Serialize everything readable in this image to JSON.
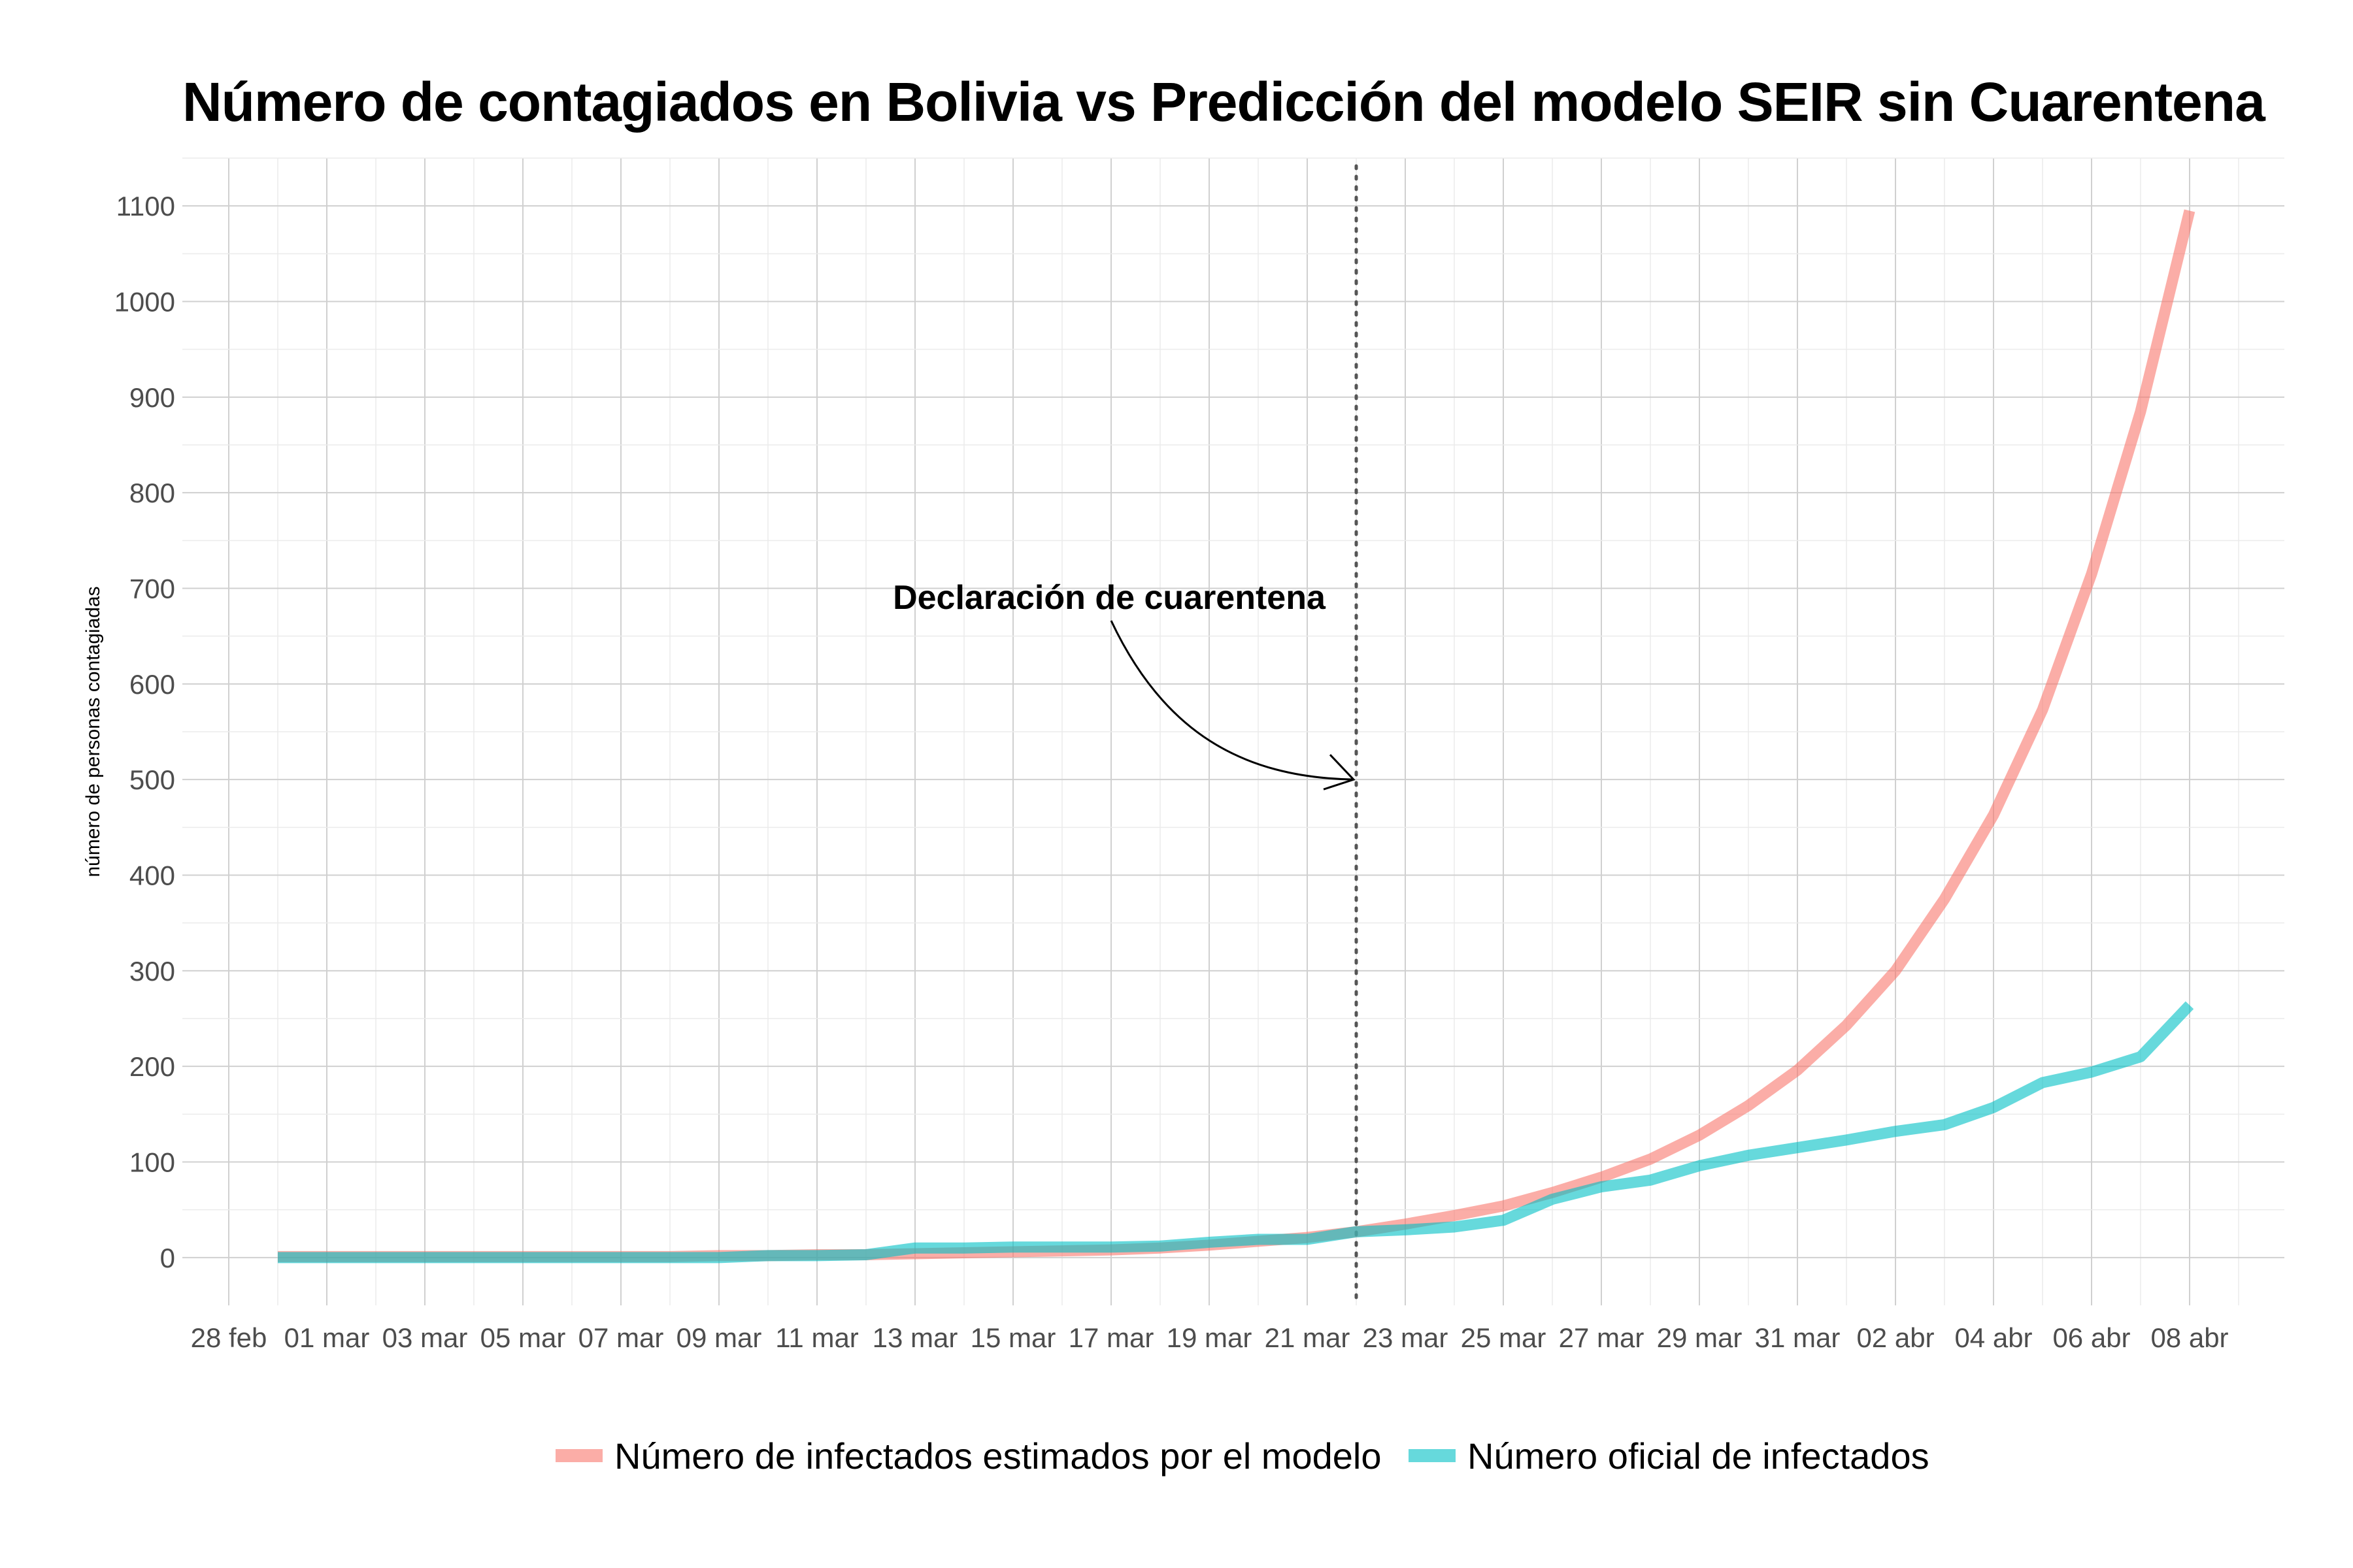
{
  "chart_data": {
    "type": "line",
    "title": "Número de contagiados en Bolivia vs Predicción del modelo SEIR sin Cuarentena",
    "xlabel": "",
    "ylabel": "número de personas contagiadas",
    "ylim": [
      -50,
      1150
    ],
    "yticks": [
      0,
      100,
      200,
      300,
      400,
      500,
      600,
      700,
      800,
      900,
      1000,
      1100
    ],
    "x_tick_labels": [
      "28 feb",
      "01 mar",
      "03 mar",
      "05 mar",
      "07 mar",
      "09 mar",
      "11 mar",
      "13 mar",
      "15 mar",
      "17 mar",
      "19 mar",
      "21 mar",
      "23 mar",
      "25 mar",
      "27 mar",
      "29 mar",
      "31 mar",
      "02 abr",
      "04 abr",
      "06 abr",
      "08 abr"
    ],
    "x": [
      "29 feb",
      "01 mar",
      "02 mar",
      "03 mar",
      "04 mar",
      "05 mar",
      "06 mar",
      "07 mar",
      "08 mar",
      "09 mar",
      "10 mar",
      "11 mar",
      "12 mar",
      "13 mar",
      "14 mar",
      "15 mar",
      "16 mar",
      "17 mar",
      "18 mar",
      "19 mar",
      "20 mar",
      "21 mar",
      "22 mar",
      "23 mar",
      "24 mar",
      "25 mar",
      "26 mar",
      "27 mar",
      "28 mar",
      "29 mar",
      "30 mar",
      "31 mar",
      "01 abr",
      "02 abr",
      "03 abr",
      "04 abr",
      "05 abr",
      "06 abr",
      "07 abr",
      "08 abr"
    ],
    "series": [
      {
        "name": "Número de infectados estimados por el modelo",
        "color": "#F8766D",
        "values": [
          1,
          1,
          1,
          1,
          1,
          1,
          1,
          1,
          1,
          2,
          2,
          3,
          3,
          4,
          5,
          6,
          7,
          8,
          10,
          13,
          17,
          21,
          27,
          35,
          44,
          54,
          68,
          84,
          103,
          128,
          159,
          196,
          243,
          300,
          375,
          463,
          573,
          715,
          885,
          1095
        ]
      },
      {
        "name": "Número oficial de infectados",
        "color": "#00BFC4",
        "values": [
          0,
          0,
          0,
          0,
          0,
          0,
          0,
          0,
          0,
          0,
          2,
          2,
          3,
          10,
          10,
          11,
          11,
          11,
          12,
          16,
          19,
          19,
          27,
          29,
          32,
          39,
          61,
          74,
          81,
          96,
          107,
          115,
          123,
          132,
          139,
          157,
          183,
          194,
          210,
          264
        ]
      }
    ],
    "annotation": {
      "text": "Declaración de cuarentena",
      "date": "22 mar",
      "arrow_to_value": 500
    },
    "grid": true,
    "legend_position": "bottom"
  }
}
